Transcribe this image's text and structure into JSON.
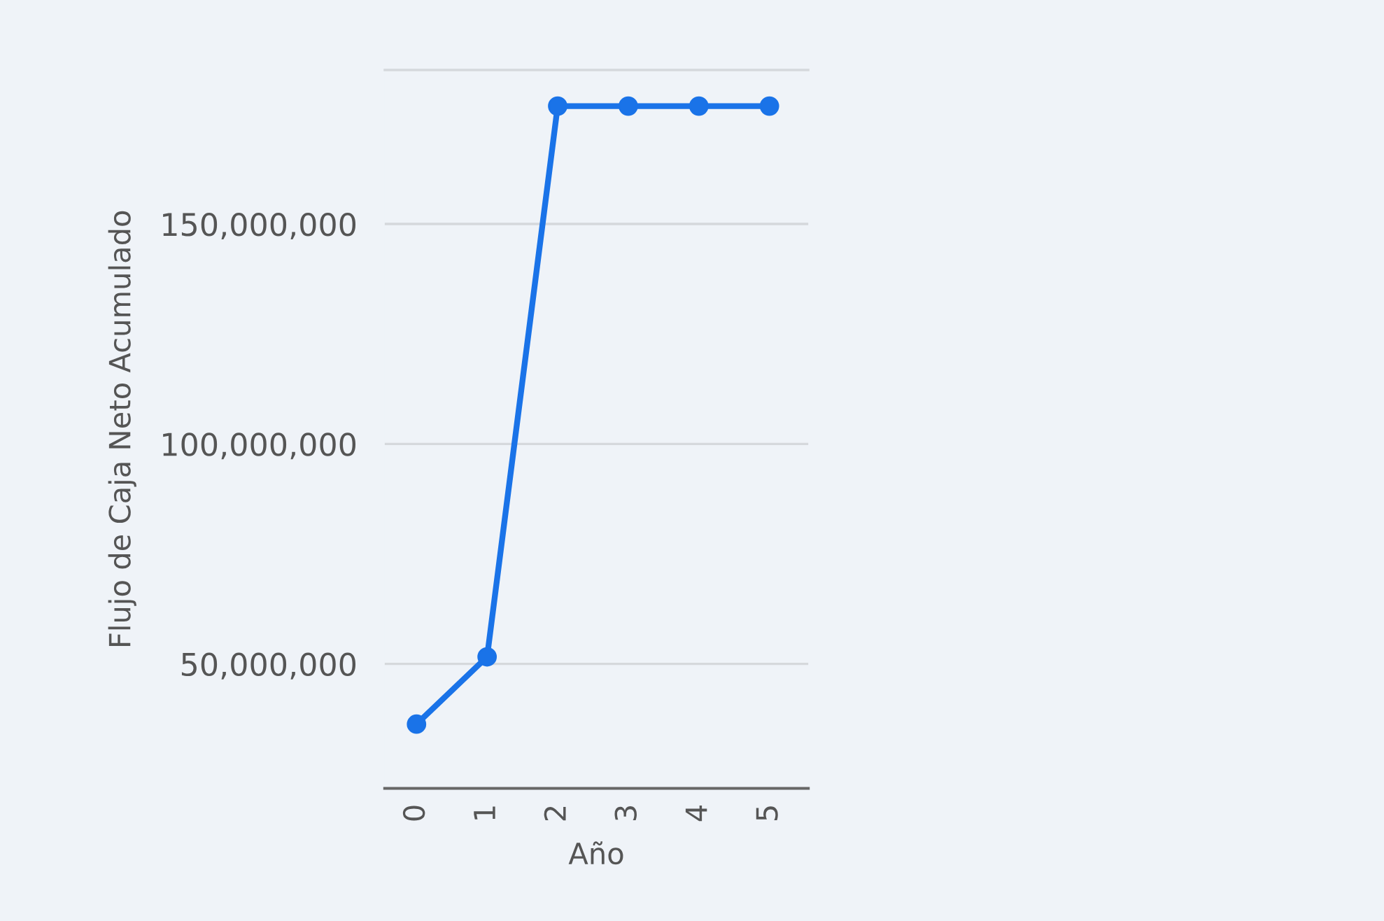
{
  "chart_data": {
    "type": "line",
    "xlabel": "Año",
    "ylabel": "Flujo de Caja Neto Acumulado",
    "categories": [
      "0",
      "1",
      "2",
      "3",
      "4",
      "5"
    ],
    "series": [
      {
        "color": "#1a73e8",
        "values": [
          36300000,
          51600000,
          176800000,
          176800000,
          176800000,
          176800000
        ]
      }
    ],
    "ylim": [
      21700000,
      185000000
    ],
    "yticks": [
      {
        "value": 50000000,
        "label": "50,000,000"
      },
      {
        "value": 100000000,
        "label": "100,000,000"
      },
      {
        "value": 150000000,
        "label": "150,000,000"
      }
    ],
    "grid": "y",
    "marker": "circle",
    "line_style": "solid",
    "legend": false
  }
}
